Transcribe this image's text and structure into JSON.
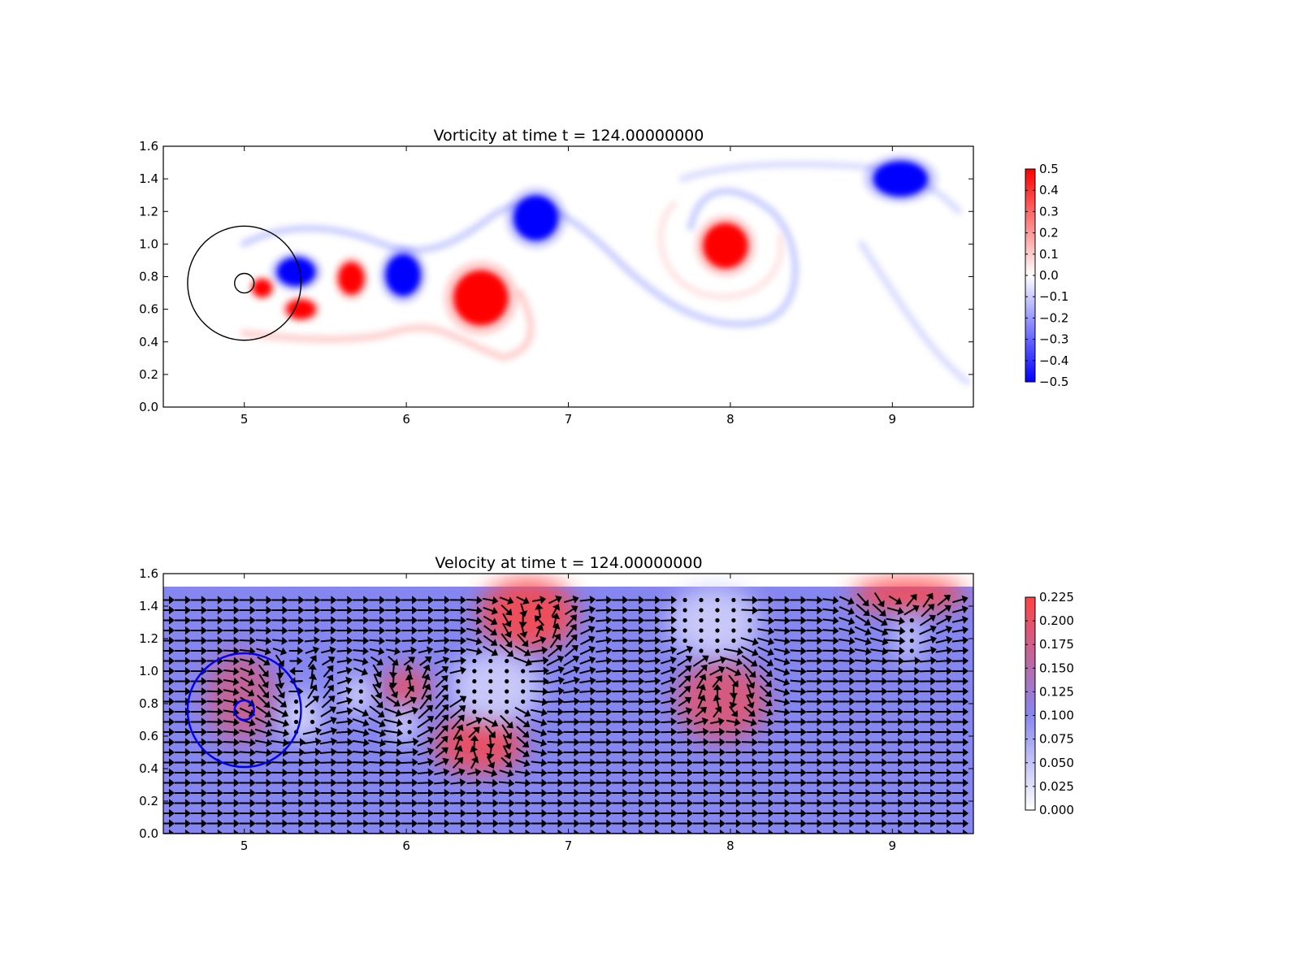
{
  "chart_data": [
    {
      "type": "heatmap",
      "title": "Vorticity at time t =   124.00000000",
      "xlabel": "",
      "ylabel": "",
      "xlim": [
        4.5,
        9.5
      ],
      "ylim": [
        0.0,
        1.6
      ],
      "x_ticks": [
        "5",
        "6",
        "7",
        "8",
        "9"
      ],
      "y_ticks": [
        "0.0",
        "0.2",
        "0.4",
        "0.6",
        "0.8",
        "1.0",
        "1.2",
        "1.4",
        "1.6"
      ],
      "colormap": {
        "low": "#0000ff",
        "mid": "#ffffff",
        "high": "#ff0000"
      },
      "colorbar": {
        "range": [
          -0.5,
          0.5
        ],
        "ticks": [
          "0.5",
          "0.4",
          "0.3",
          "0.2",
          "0.1",
          "0.0",
          "−0.1",
          "−0.2",
          "−0.3",
          "−0.4",
          "−0.5"
        ]
      },
      "domain_ymax": 1.52,
      "vortices": [
        {
          "x": 5.32,
          "y": 0.83,
          "rx": 0.12,
          "ry": 0.09,
          "value": -0.5
        },
        {
          "x": 5.11,
          "y": 0.73,
          "rx": 0.06,
          "ry": 0.055,
          "value": 0.5
        },
        {
          "x": 5.35,
          "y": 0.6,
          "rx": 0.09,
          "ry": 0.06,
          "value": 0.5
        },
        {
          "x": 5.66,
          "y": 0.79,
          "rx": 0.08,
          "ry": 0.1,
          "value": 0.5
        },
        {
          "x": 5.98,
          "y": 0.81,
          "rx": 0.11,
          "ry": 0.13,
          "value": -0.5
        },
        {
          "x": 6.46,
          "y": 0.67,
          "rx": 0.17,
          "ry": 0.17,
          "value": 0.5
        },
        {
          "x": 6.8,
          "y": 1.16,
          "rx": 0.14,
          "ry": 0.14,
          "value": -0.5
        },
        {
          "x": 7.97,
          "y": 0.99,
          "rx": 0.14,
          "ry": 0.14,
          "value": 0.5
        },
        {
          "x": 9.05,
          "y": 1.4,
          "rx": 0.17,
          "ry": 0.11,
          "value": -0.5
        }
      ],
      "circles": [
        {
          "x": 5.0,
          "y": 0.76,
          "r": 0.35,
          "color": "#000000"
        },
        {
          "x": 5.0,
          "y": 0.76,
          "r": 0.06,
          "color": "#000000"
        }
      ]
    },
    {
      "type": "heatmap",
      "title": "Velocity at time t =   124.00000000",
      "xlabel": "",
      "ylabel": "",
      "xlim": [
        4.5,
        9.5
      ],
      "ylim": [
        0.0,
        1.6
      ],
      "x_ticks": [
        "5",
        "6",
        "7",
        "8",
        "9"
      ],
      "y_ticks": [
        "0.0",
        "0.2",
        "0.4",
        "0.6",
        "0.8",
        "1.0",
        "1.2",
        "1.4",
        "1.6"
      ],
      "colormap": {
        "low": "#ffffff",
        "mid": "#8686f0",
        "high": "#ff4444"
      },
      "colorbar": {
        "range": [
          0.0,
          0.225
        ],
        "ticks": [
          "0.225",
          "0.200",
          "0.175",
          "0.150",
          "0.125",
          "0.100",
          "0.075",
          "0.050",
          "0.025",
          "0.000"
        ]
      },
      "domain_ymax": 1.52,
      "background_speed": 0.1,
      "speed_features": [
        {
          "x": 6.75,
          "y": 1.35,
          "rx": 0.3,
          "ry": 0.22,
          "value": 0.22
        },
        {
          "x": 9.1,
          "y": 1.47,
          "rx": 0.35,
          "ry": 0.1,
          "value": 0.23
        },
        {
          "x": 7.95,
          "y": 0.82,
          "rx": 0.28,
          "ry": 0.25,
          "value": 0.19
        },
        {
          "x": 6.45,
          "y": 0.55,
          "rx": 0.28,
          "ry": 0.18,
          "value": 0.21
        },
        {
          "x": 6.0,
          "y": 0.9,
          "rx": 0.15,
          "ry": 0.12,
          "value": 0.2
        },
        {
          "x": 4.98,
          "y": 0.84,
          "rx": 0.22,
          "ry": 0.28,
          "value": 0.17
        },
        {
          "x": 5.7,
          "y": 0.85,
          "rx": 0.08,
          "ry": 0.12,
          "value": 0.02
        },
        {
          "x": 5.98,
          "y": 0.67,
          "rx": 0.08,
          "ry": 0.1,
          "value": 0.02
        },
        {
          "x": 6.55,
          "y": 0.9,
          "rx": 0.28,
          "ry": 0.22,
          "value": 0.04
        },
        {
          "x": 7.9,
          "y": 1.3,
          "rx": 0.28,
          "ry": 0.22,
          "value": 0.04
        },
        {
          "x": 9.1,
          "y": 1.2,
          "rx": 0.08,
          "ry": 0.15,
          "value": 0.04
        },
        {
          "x": 5.35,
          "y": 0.72,
          "rx": 0.12,
          "ry": 0.15,
          "value": 0.03
        }
      ],
      "circles": [
        {
          "x": 5.0,
          "y": 0.76,
          "r": 0.35,
          "color": "#0000ee"
        },
        {
          "x": 5.0,
          "y": 0.76,
          "r": 0.06,
          "color": "#0000ee"
        }
      ]
    }
  ]
}
